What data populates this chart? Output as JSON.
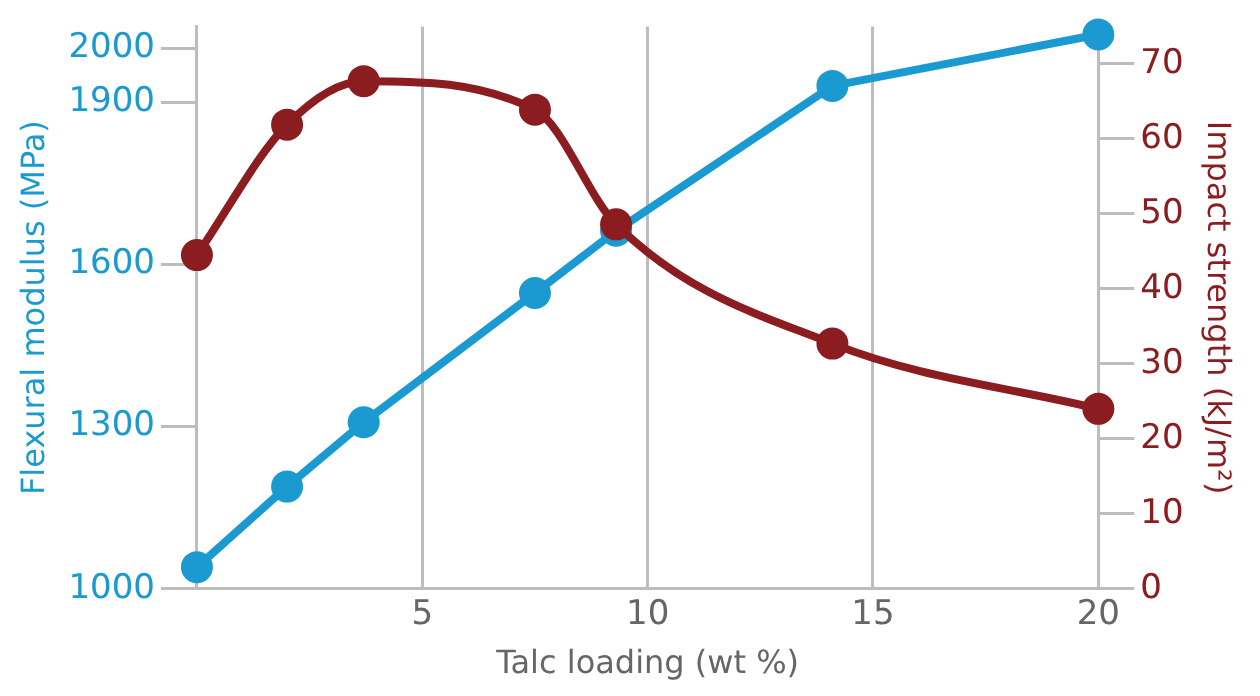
{
  "chart_data": {
    "type": "line",
    "xlabel": "Talc loading (wt %)",
    "ylabel": "Flexural modulus (MPa)",
    "y2label": "Impact strength (kJ/m²)",
    "x": [
      0,
      2,
      3.7,
      7.5,
      9.3,
      14.1,
      20
    ],
    "series": [
      {
        "color": "#1b9ad2",
        "values": [
          1040,
          1189,
          1308,
          1547,
          1662,
          1930,
          2025
        ],
        "axis": "y"
      },
      {
        "color": "#8b1c1f",
        "values": [
          44.5,
          61.9,
          67.7,
          63.9,
          48.6,
          32.7,
          24.0
        ],
        "axis": "y2"
      }
    ],
    "xlim": [
      0,
      20
    ],
    "xticks": [
      5,
      10,
      15,
      20
    ],
    "ylim": [
      1000,
      2040
    ],
    "yticks": [
      1000,
      1300,
      1600,
      1900,
      2000
    ],
    "y2lim": [
      0,
      75
    ],
    "y2ticks": [
      0,
      10,
      20,
      30,
      40,
      50,
      60,
      70
    ],
    "grid": "x",
    "legend": false,
    "marker": "circle",
    "line_style": "solid"
  }
}
